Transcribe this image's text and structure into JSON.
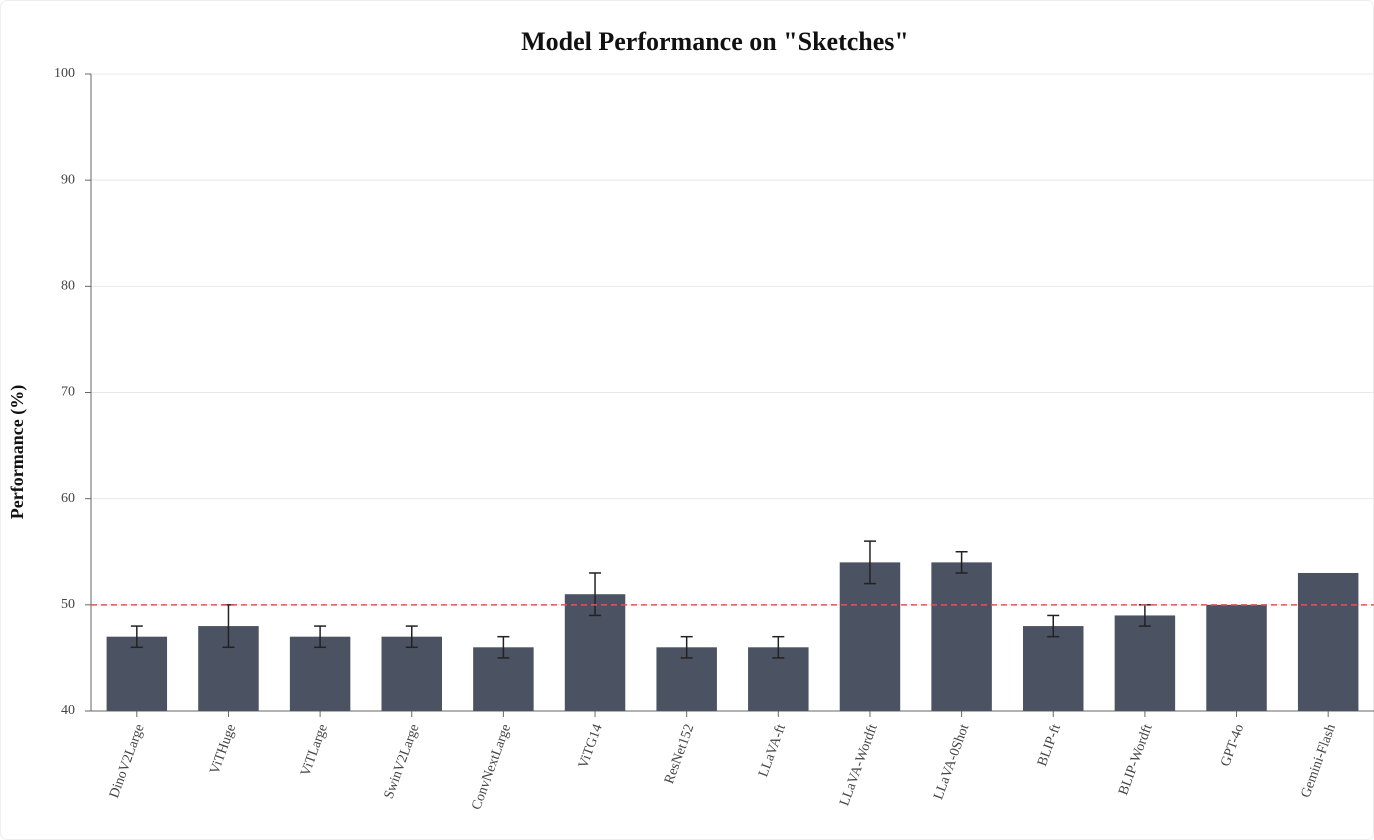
{
  "chart_data": {
    "type": "bar",
    "title": "Model Performance on \"Sketches\"",
    "y_label": "Performance (%)",
    "categories": [
      "DinoV2Large",
      "ViTHuge",
      "ViTLarge",
      "SwinV2Large",
      "ConvNextLarge",
      "ViTG14",
      "ResNet152",
      "LLaVA-ft",
      "LLaVA-Wordft",
      "LLaVA-0Shot",
      "BLIP-ft",
      "BLIP-Wordft",
      "GPT-4o",
      "Gemini-Flash"
    ],
    "values": [
      47,
      48,
      47,
      47,
      46,
      51,
      46,
      46,
      54,
      54,
      48,
      49,
      50,
      53
    ],
    "errors": [
      1,
      2,
      1,
      1,
      1,
      2,
      1,
      1,
      2,
      1,
      1,
      1,
      null,
      null
    ],
    "color": "#4b5261",
    "reference_line": 50,
    "reference_color": "#e05555",
    "ylim": [
      40,
      100
    ],
    "yticks": [
      40,
      50,
      60,
      70,
      80,
      90,
      100
    ],
    "grid": true
  }
}
